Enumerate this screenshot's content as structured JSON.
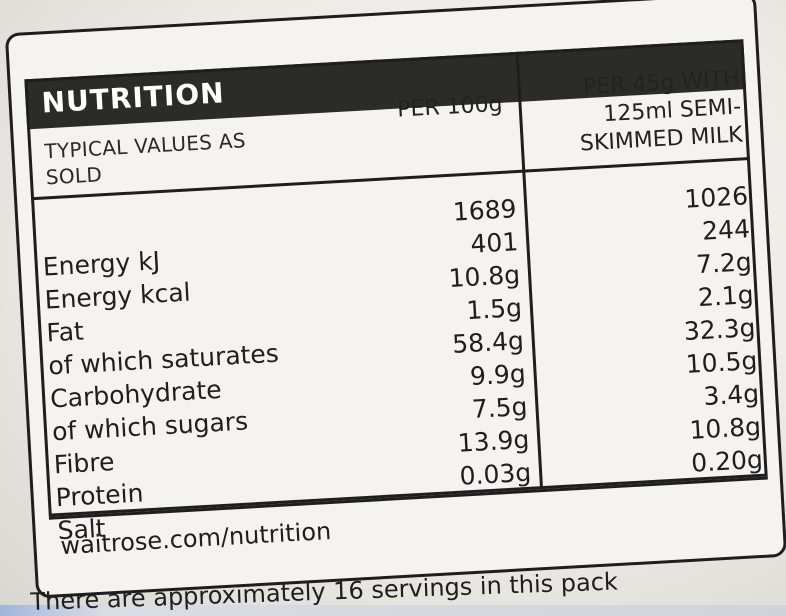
{
  "label": {
    "title": "NUTRITION",
    "typical_values": "TYPICAL VALUES AS SOLD",
    "col_per100_header": "PER 100g",
    "col_per45_header": "PER 45g WITH 125ml SEMI-SKIMMED MILK",
    "rows": [
      {
        "name": "Energy kJ",
        "per100": "1689",
        "per45": "1026"
      },
      {
        "name": "Energy kcal",
        "per100": "401",
        "per45": "244"
      },
      {
        "name": "Fat",
        "per100": "10.8g",
        "per45": "7.2g"
      },
      {
        "name": "of which saturates",
        "per100": "1.5g",
        "per45": "2.1g"
      },
      {
        "name": "Carbohydrate",
        "per100": "58.4g",
        "per45": "32.3g"
      },
      {
        "name": "of which sugars",
        "per100": "9.9g",
        "per45": "10.5g"
      },
      {
        "name": "Fibre",
        "per100": "7.5g",
        "per45": "3.4g"
      },
      {
        "name": "Protein",
        "per100": "13.9g",
        "per45": "10.8g"
      },
      {
        "name": "Salt",
        "per100": "0.03g",
        "per45": "0.20g"
      }
    ],
    "website": "waitrose.com/nutrition",
    "servings_note": "There are approximately 16 servings in this pack"
  },
  "colors": {
    "header_bar": "#2b2b29",
    "label_background": "#f4f3ef",
    "packet_blue": "#9db4d8"
  }
}
